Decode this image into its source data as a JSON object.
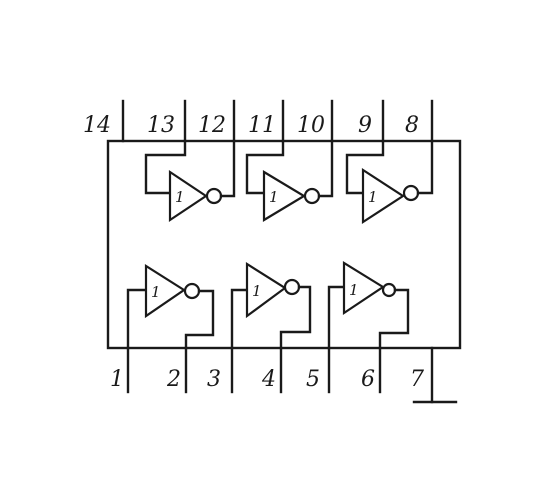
{
  "chip": {
    "top_pins": [
      "14",
      "13",
      "12",
      "11",
      "10",
      "9",
      "8"
    ],
    "bottom_pins": [
      "1",
      "2",
      "3",
      "4",
      "5",
      "6",
      "7"
    ],
    "gate_symbol": "1"
  },
  "colors": {
    "ink": "#1a1a1a",
    "background": "#ffffff"
  }
}
